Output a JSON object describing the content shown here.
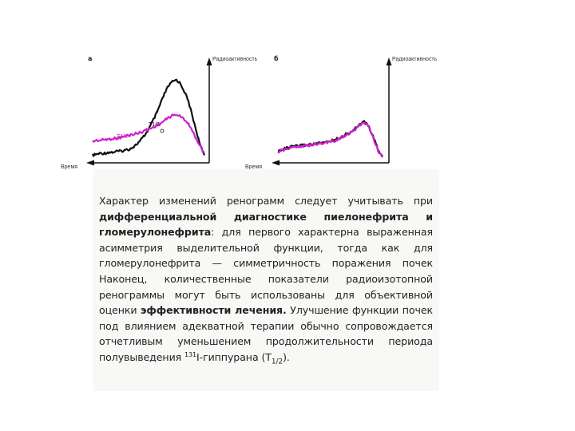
{
  "chart_data": [
    {
      "type": "line",
      "panel_label": "а",
      "xlabel": "Время",
      "ylabel": "Радиоактивность",
      "annotations": [
        "T1/2",
        "T1/2"
      ],
      "series": [
        {
          "color": "#111111",
          "x": [
            0,
            5,
            10,
            15,
            20,
            25,
            30,
            35,
            40,
            45,
            50,
            55,
            60,
            65,
            70,
            75,
            80,
            82,
            85,
            90,
            95,
            100,
            105,
            110,
            115,
            120,
            125,
            130,
            135,
            140
          ],
          "y": [
            6,
            7,
            8,
            8,
            9,
            9,
            10,
            10,
            11,
            12,
            14,
            17,
            21,
            26,
            32,
            40,
            48,
            52,
            58,
            68,
            76,
            80,
            82,
            78,
            70,
            60,
            45,
            30,
            15,
            6
          ]
        },
        {
          "color": "#cc22cc",
          "x": [
            0,
            5,
            10,
            15,
            20,
            25,
            30,
            35,
            40,
            45,
            50,
            55,
            60,
            65,
            70,
            75,
            80,
            85,
            90,
            95,
            100,
            105,
            110,
            115,
            120,
            125,
            130,
            135,
            140
          ],
          "y": [
            20,
            21,
            21,
            22,
            22,
            23,
            23,
            24,
            25,
            26,
            27,
            28,
            29,
            31,
            32,
            34,
            36,
            38,
            41,
            44,
            46,
            47,
            45,
            42,
            38,
            30,
            22,
            15,
            8
          ]
        }
      ]
    },
    {
      "type": "line",
      "panel_label": "б",
      "xlabel": "Время",
      "ylabel": "Радиоактивность",
      "series": [
        {
          "color": "#111111",
          "x": [
            0,
            5,
            10,
            15,
            20,
            25,
            30,
            35,
            40,
            45,
            50,
            55,
            60,
            65,
            70,
            75,
            80,
            85,
            90,
            95,
            100,
            105,
            110,
            115,
            120,
            125,
            130,
            135
          ],
          "y": [
            10,
            12,
            13,
            14,
            15,
            15,
            16,
            16,
            17,
            17,
            18,
            18,
            19,
            20,
            21,
            22,
            24,
            26,
            28,
            30,
            33,
            37,
            40,
            38,
            30,
            20,
            10,
            5
          ]
        },
        {
          "color": "#cc22cc",
          "x": [
            0,
            5,
            10,
            15,
            20,
            25,
            30,
            35,
            40,
            45,
            50,
            55,
            60,
            65,
            70,
            75,
            80,
            85,
            90,
            95,
            100,
            105,
            110,
            115,
            120,
            125,
            130,
            135
          ],
          "y": [
            9,
            11,
            12,
            13,
            14,
            15,
            15,
            16,
            16,
            17,
            17,
            18,
            18,
            19,
            20,
            21,
            23,
            25,
            27,
            29,
            32,
            36,
            39,
            37,
            29,
            19,
            9,
            4
          ]
        }
      ]
    }
  ],
  "text": {
    "p1": "Характер изменений ренограмм следует учитывать при ",
    "b1": "дифференциальной диагностике пиелонефрита и гломерулонефрита",
    "p2": ": для первого характерна выраженная асимметрия выделительной функции, тогда как для гломерулонефрита — симметричность поражения почек Наконец, количественные показатели радиоизотопной ренограммы могут быть использованы для объективной оценки ",
    "b2": "эффективности лечения.",
    "p3": " Улучшение функции почек под влиянием адекватной терапии обычно сопровождается отчетливым уменьшением продолжительности периода полувыведения ",
    "sup": "131",
    "p4": "I-гиппурана (Т",
    "sub": "1/2",
    "p5": ")."
  }
}
